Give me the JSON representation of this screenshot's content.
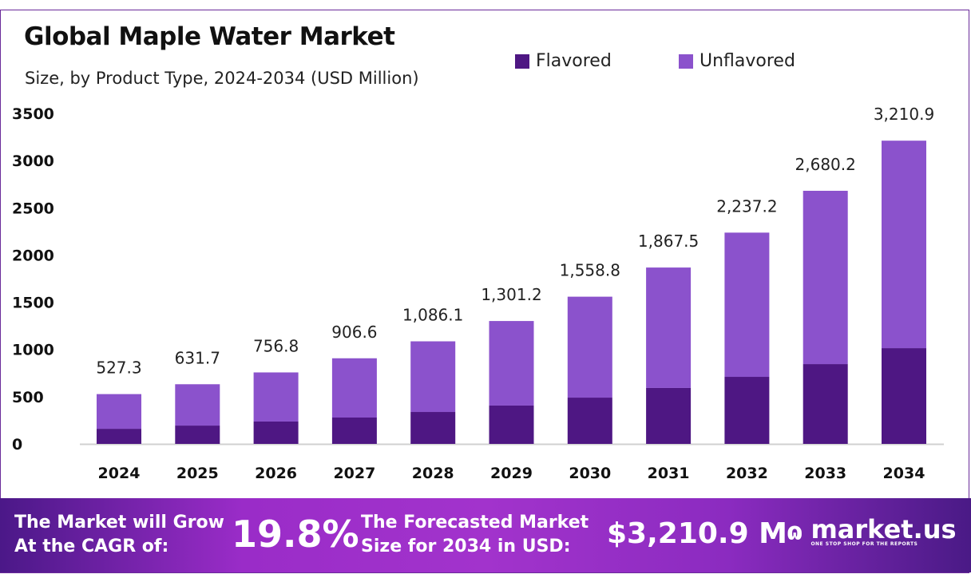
{
  "chart_data": {
    "type": "bar",
    "stacked": true,
    "title": "Global Maple Water Market",
    "subtitle": "Size, by Product Type, 2024-2034 (USD Million)",
    "categories": [
      "2024",
      "2025",
      "2026",
      "2027",
      "2028",
      "2029",
      "2030",
      "2031",
      "2032",
      "2033",
      "2034"
    ],
    "series": [
      {
        "name": "Flavored",
        "color": "#4e1783",
        "values": [
          160,
          194,
          237,
          279,
          338,
          406,
          490,
          592,
          710,
          845,
          1014
        ]
      },
      {
        "name": "Unflavored",
        "color": "#8b52cc",
        "values": [
          367.3,
          437.7,
          519.8,
          627.6,
          748.1,
          895.2,
          1068.8,
          1275.5,
          1527.2,
          1835.2,
          2196.9
        ]
      }
    ],
    "totals": [
      527.3,
      631.7,
      756.8,
      906.6,
      1086.1,
      1301.2,
      1558.8,
      1867.5,
      2237.2,
      2680.2,
      3210.9
    ],
    "total_labels": [
      "527.3",
      "631.7",
      "756.8",
      "906.6",
      "1,086.1",
      "1,301.2",
      "1,558.8",
      "1,867.5",
      "2,237.2",
      "2,680.2",
      "3,210.9"
    ],
    "yticks": [
      0,
      500,
      1000,
      1500,
      2000,
      2500,
      3000,
      3500
    ],
    "ylim": [
      0,
      3500
    ],
    "grid": false,
    "legend_position": "top-right"
  },
  "banner": {
    "cagr_text_1": "The Market will Grow",
    "cagr_text_2": "At the CAGR of:",
    "cagr_value": "19.8%",
    "forecast_text_1": "The Forecasted Market",
    "forecast_text_2": "Size for 2034 in USD:",
    "forecast_value": "$3,210.9 M",
    "brand": "market.us",
    "tagline": "ONE STOP SHOP FOR THE REPORTS"
  }
}
